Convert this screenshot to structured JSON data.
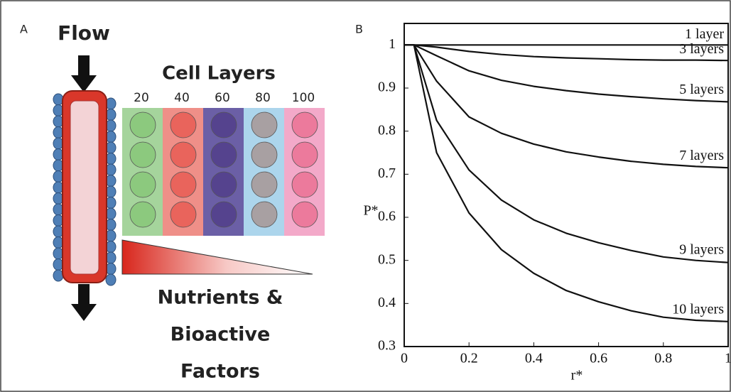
{
  "panel_a": {
    "letter": "A",
    "flow": "Flow",
    "cell_layers": "Cell Layers",
    "layer_labels": [
      "20",
      "40",
      "60",
      "80",
      "100"
    ],
    "gradient_label": [
      "Nutrients &",
      "Bioactive",
      "Factors"
    ]
  },
  "chart_data": {
    "type": "line",
    "letter": "B",
    "xlabel": "r*",
    "ylabel": "P*",
    "x": [
      0,
      0.03,
      0.1,
      0.2,
      0.3,
      0.4,
      0.5,
      0.6,
      0.7,
      0.8,
      0.9,
      1
    ],
    "series": [
      {
        "name": "1 layer",
        "color": "#111111",
        "values": [
          1,
          1,
          1,
          1,
          1,
          1,
          1,
          1,
          1,
          1,
          1,
          1
        ]
      },
      {
        "name": "3 layers",
        "color": "#111111",
        "values": [
          1,
          1,
          0.995,
          0.985,
          0.978,
          0.973,
          0.97,
          0.968,
          0.966,
          0.965,
          0.965,
          0.964
        ]
      },
      {
        "name": "5 layers",
        "color": "#111111",
        "values": [
          1,
          1,
          0.975,
          0.94,
          0.918,
          0.904,
          0.894,
          0.886,
          0.88,
          0.875,
          0.871,
          0.868
        ]
      },
      {
        "name": "7 layers",
        "color": "#111111",
        "values": [
          1,
          1,
          0.916,
          0.833,
          0.795,
          0.77,
          0.752,
          0.74,
          0.73,
          0.723,
          0.718,
          0.715
        ]
      },
      {
        "name": "9 layers",
        "color": "#111111",
        "values": [
          1,
          1,
          0.825,
          0.71,
          0.64,
          0.594,
          0.563,
          0.541,
          0.523,
          0.508,
          0.5,
          0.495
        ]
      },
      {
        "name": "10 layers",
        "color": "#111111",
        "values": [
          1,
          1,
          0.75,
          0.61,
          0.525,
          0.47,
          0.43,
          0.404,
          0.383,
          0.368,
          0.361,
          0.358
        ]
      }
    ],
    "xlim": [
      0,
      1
    ],
    "ylim": [
      0.3,
      1.05
    ],
    "xticks": [
      0,
      0.2,
      0.4,
      0.6,
      0.8,
      1
    ],
    "yticks": [
      0.3,
      0.4,
      0.5,
      0.6,
      0.7,
      0.8,
      0.9,
      1
    ]
  }
}
